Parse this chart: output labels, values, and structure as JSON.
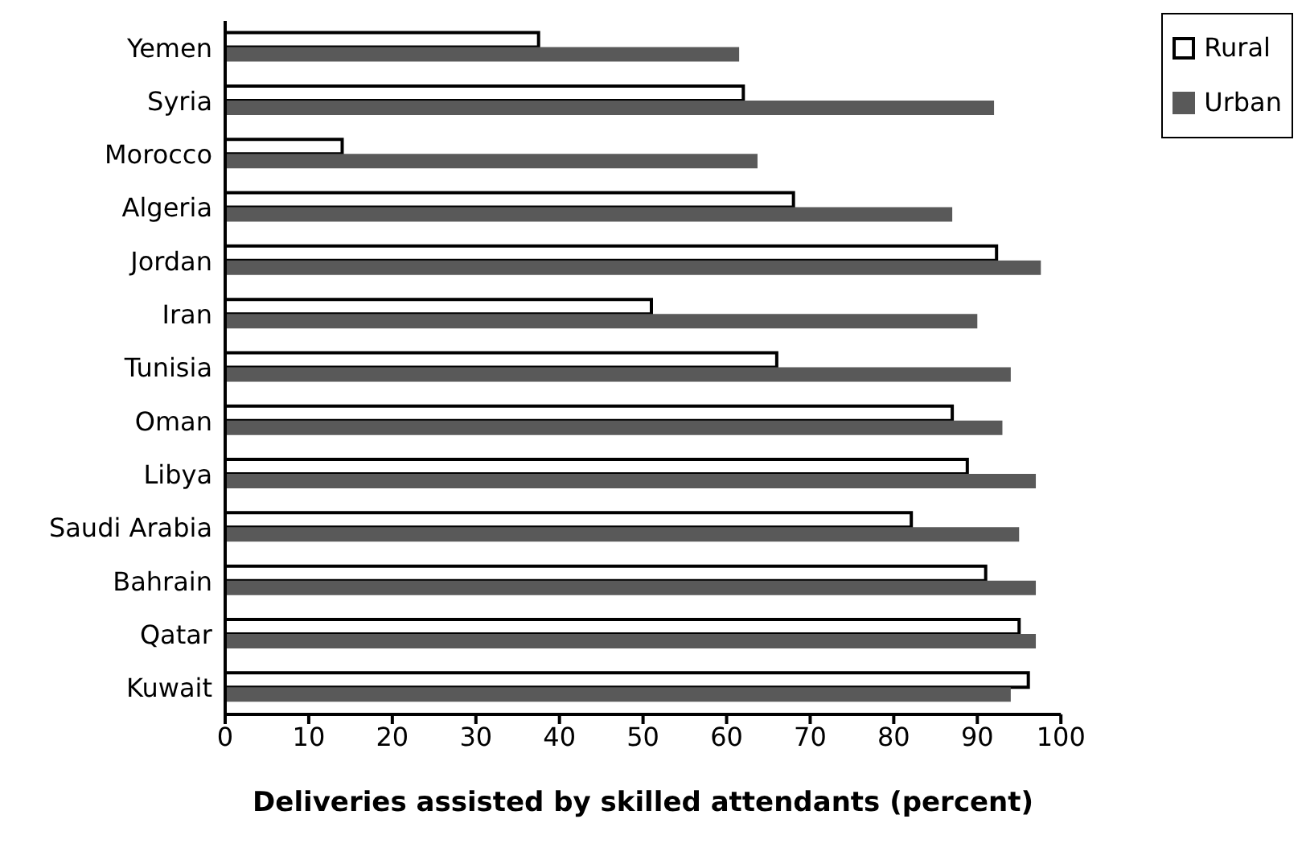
{
  "chart_data": {
    "type": "bar",
    "orientation": "horizontal",
    "xlabel": "Deliveries assisted by skilled attendants (percent)",
    "categories": [
      "Yemen",
      "Syria",
      "Morocco",
      "Algeria",
      "Jordan",
      "Iran",
      "Tunisia",
      "Oman",
      "Libya",
      "Saudi Arabia",
      "Bahrain",
      "Qatar",
      "Kuwait"
    ],
    "series": [
      {
        "name": "Rural",
        "color": "#ffffff",
        "values": [
          37.5,
          62,
          14,
          68,
          92.3,
          51,
          66,
          87,
          88.8,
          82.1,
          91,
          95,
          96.1
        ]
      },
      {
        "name": "Urban",
        "color": "#595959",
        "values": [
          61.5,
          92,
          63.7,
          87,
          97.6,
          90,
          94,
          93,
          97,
          95,
          97,
          97,
          94
        ]
      }
    ],
    "xlim": [
      0,
      100
    ],
    "xticks": [
      0,
      10,
      20,
      30,
      40,
      50,
      60,
      70,
      80,
      90,
      100
    ],
    "grid": false,
    "legend": "top right"
  }
}
